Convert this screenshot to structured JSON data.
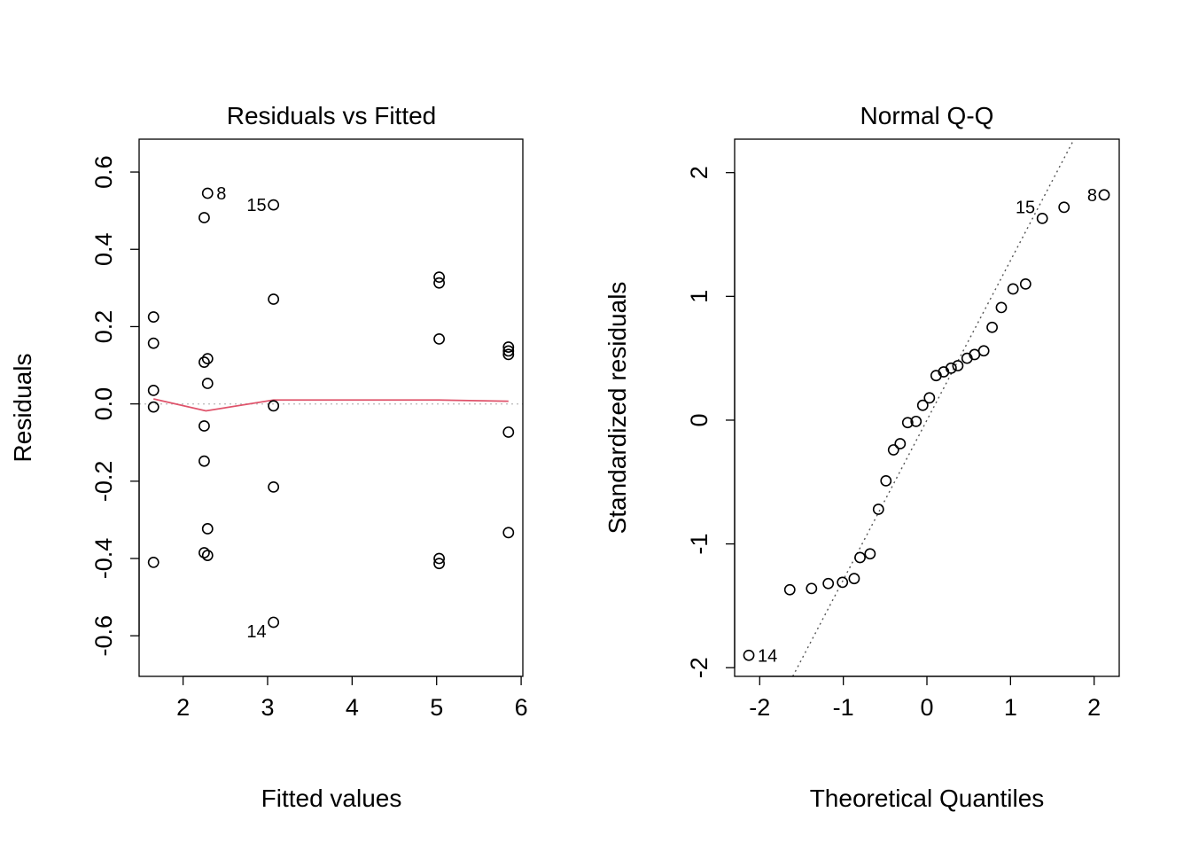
{
  "chart_data": [
    {
      "type": "scatter",
      "title": "Residuals vs Fitted",
      "xlabel": "Fitted values",
      "ylabel": "Residuals",
      "xlim": [
        1.48,
        6.02
      ],
      "ylim": [
        -0.705,
        0.685
      ],
      "xticks": [
        2,
        3,
        4,
        5,
        6
      ],
      "yticks": [
        -0.6,
        -0.4,
        -0.2,
        0.0,
        0.2,
        0.4,
        0.6
      ],
      "ytick_labels": [
        "-0.6",
        "-0.4",
        "-0.2",
        "0.0",
        "0.2",
        "0.4",
        "0.6"
      ],
      "reference_line": {
        "y": 0,
        "color": "#bebebe",
        "style": "dotted"
      },
      "smooth_color": "#df536b",
      "points": [
        {
          "x": 1.65,
          "y": 0.225
        },
        {
          "x": 1.65,
          "y": 0.157
        },
        {
          "x": 1.65,
          "y": 0.035
        },
        {
          "x": 1.65,
          "y": -0.008
        },
        {
          "x": 1.65,
          "y": -0.41
        },
        {
          "x": 2.25,
          "y": 0.482
        },
        {
          "x": 2.25,
          "y": 0.108
        },
        {
          "x": 2.25,
          "y": -0.057
        },
        {
          "x": 2.25,
          "y": -0.148
        },
        {
          "x": 2.25,
          "y": -0.385
        },
        {
          "x": 2.29,
          "y": 0.545
        },
        {
          "x": 2.29,
          "y": 0.117
        },
        {
          "x": 2.29,
          "y": 0.053
        },
        {
          "x": 2.29,
          "y": -0.323
        },
        {
          "x": 2.29,
          "y": -0.392
        },
        {
          "x": 3.07,
          "y": 0.515
        },
        {
          "x": 3.07,
          "y": 0.271
        },
        {
          "x": 3.07,
          "y": -0.005
        },
        {
          "x": 3.07,
          "y": -0.215
        },
        {
          "x": 3.07,
          "y": -0.565
        },
        {
          "x": 5.03,
          "y": 0.328
        },
        {
          "x": 5.03,
          "y": 0.313
        },
        {
          "x": 5.03,
          "y": 0.168
        },
        {
          "x": 5.03,
          "y": -0.4
        },
        {
          "x": 5.03,
          "y": -0.413
        },
        {
          "x": 5.85,
          "y": 0.147
        },
        {
          "x": 5.85,
          "y": 0.137
        },
        {
          "x": 5.85,
          "y": 0.128
        },
        {
          "x": 5.85,
          "y": -0.073
        },
        {
          "x": 5.85,
          "y": -0.333
        }
      ],
      "smooth": [
        {
          "x": 1.65,
          "y": 0.013
        },
        {
          "x": 2.27,
          "y": -0.018
        },
        {
          "x": 3.07,
          "y": 0.01
        },
        {
          "x": 5.03,
          "y": 0.01
        },
        {
          "x": 5.85,
          "y": 0.007
        }
      ],
      "point_labels": [
        {
          "text": "8",
          "x": 2.29,
          "y": 0.545,
          "side": "right"
        },
        {
          "text": "15",
          "x": 3.07,
          "y": 0.515,
          "side": "left"
        },
        {
          "text": "14",
          "x": 3.07,
          "y": -0.565,
          "side": "left"
        }
      ]
    },
    {
      "type": "scatter",
      "title": "Normal Q-Q",
      "xlabel": "Theoretical Quantiles",
      "ylabel": "Standardized residuals",
      "xlim": [
        -2.3,
        2.3
      ],
      "ylim": [
        -2.07,
        2.27
      ],
      "xticks": [
        -2,
        -1,
        0,
        1,
        2
      ],
      "yticks": [
        -2,
        -1,
        0,
        1,
        2
      ],
      "reference_line": {
        "slope": 1.29,
        "intercept": 0,
        "color": "#555555",
        "style": "dotted"
      },
      "points": [
        {
          "x": -2.13,
          "y": -1.9
        },
        {
          "x": -1.64,
          "y": -1.37
        },
        {
          "x": -1.38,
          "y": -1.36
        },
        {
          "x": -1.18,
          "y": -1.32
        },
        {
          "x": -1.01,
          "y": -1.31
        },
        {
          "x": -0.87,
          "y": -1.28
        },
        {
          "x": -0.8,
          "y": -1.11
        },
        {
          "x": -0.68,
          "y": -1.08
        },
        {
          "x": -0.58,
          "y": -0.72
        },
        {
          "x": -0.49,
          "y": -0.49
        },
        {
          "x": -0.4,
          "y": -0.24
        },
        {
          "x": -0.32,
          "y": -0.19
        },
        {
          "x": -0.23,
          "y": -0.02
        },
        {
          "x": -0.13,
          "y": -0.01
        },
        {
          "x": -0.05,
          "y": 0.12
        },
        {
          "x": 0.03,
          "y": 0.18
        },
        {
          "x": 0.11,
          "y": 0.36
        },
        {
          "x": 0.2,
          "y": 0.39
        },
        {
          "x": 0.29,
          "y": 0.42
        },
        {
          "x": 0.37,
          "y": 0.44
        },
        {
          "x": 0.48,
          "y": 0.5
        },
        {
          "x": 0.57,
          "y": 0.53
        },
        {
          "x": 0.68,
          "y": 0.56
        },
        {
          "x": 0.78,
          "y": 0.75
        },
        {
          "x": 0.89,
          "y": 0.91
        },
        {
          "x": 1.03,
          "y": 1.06
        },
        {
          "x": 1.18,
          "y": 1.1
        },
        {
          "x": 1.38,
          "y": 1.63
        },
        {
          "x": 1.64,
          "y": 1.72
        },
        {
          "x": 2.12,
          "y": 1.82
        }
      ],
      "point_labels": [
        {
          "text": "14",
          "x": -2.13,
          "y": -1.9,
          "side": "right"
        },
        {
          "text": "15",
          "x": 1.38,
          "y": 1.63,
          "side": "lefttop"
        },
        {
          "text": "8",
          "x": 2.12,
          "y": 1.82,
          "side": "left"
        }
      ]
    }
  ]
}
